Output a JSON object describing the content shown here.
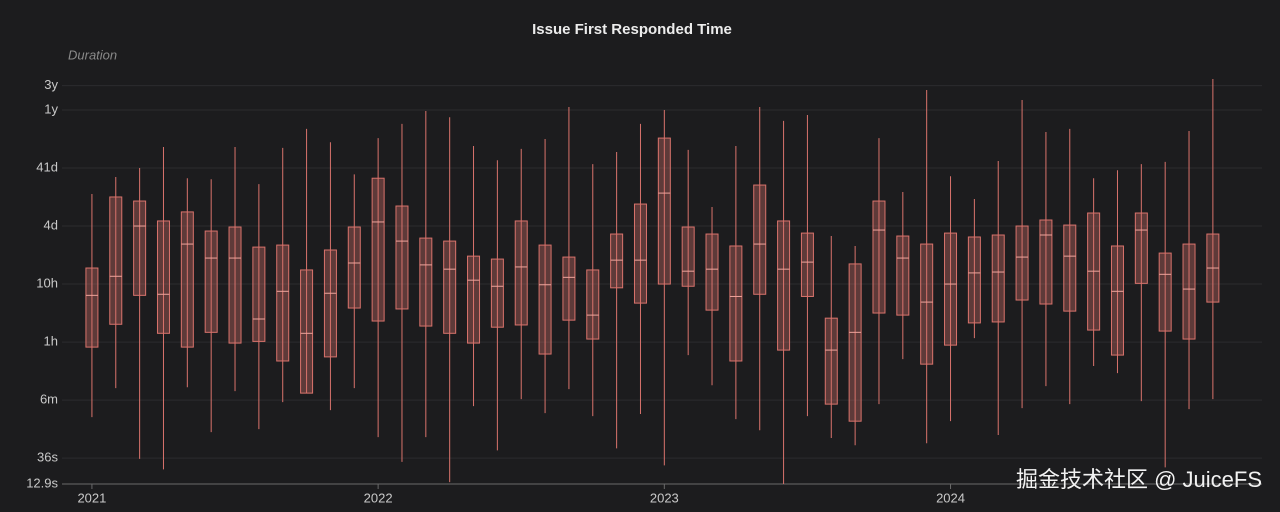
{
  "chart_data": {
    "type": "box",
    "title": "Issue First Responded Time",
    "y_label": "Duration",
    "categories": [
      "2021",
      null,
      null,
      null,
      null,
      null,
      null,
      null,
      null,
      null,
      null,
      null,
      "2022",
      null,
      null,
      null,
      null,
      null,
      null,
      null,
      null,
      null,
      null,
      null,
      "2023",
      null,
      null,
      null,
      null,
      null,
      null,
      null,
      null,
      null,
      null,
      null,
      "2024",
      null,
      null,
      null,
      null,
      null,
      null,
      null,
      null,
      null,
      null,
      null
    ],
    "min": [
      183,
      580,
      35,
      23,
      600,
      101,
      514,
      114,
      333,
      475,
      242,
      580,
      83,
      31,
      83,
      13.9,
      284,
      49,
      374,
      215,
      557,
      191,
      53,
      207,
      27,
      2150,
      650,
      169,
      109,
      12.9,
      191,
      80,
      60,
      307,
      1830,
      65,
      156,
      4220,
      90,
      262,
      627,
      307,
      1390,
      1050,
      346,
      25,
      252,
      374
    ],
    "q1": [
      2950,
      7300,
      23000,
      5100,
      2950,
      5300,
      3460,
      3700,
      1700,
      475,
      2000,
      13900,
      8300,
      13400,
      6800,
      5100,
      3460,
      6500,
      7100,
      2240,
      8600,
      4060,
      31000,
      16900,
      36000,
      33000,
      12800,
      1700,
      24000,
      2620,
      22000,
      307,
      156,
      11400,
      10500,
      1500,
      3190,
      7700,
      8000,
      19100,
      16300,
      12300,
      5800,
      2150,
      37000,
      5570,
      4060,
      17600
    ],
    "median": [
      23000,
      49000,
      360000,
      24000,
      176000,
      101000,
      101000,
      9000,
      27000,
      5100,
      25000,
      83000,
      423000,
      198000,
      77000,
      65000,
      42000,
      33000,
      71000,
      35000,
      47000,
      10500,
      93000,
      93000,
      1330000,
      60000,
      65000,
      22000,
      176000,
      65000,
      86000,
      2620,
      5300,
      307000,
      101000,
      17600,
      36000,
      56000,
      58000,
      105000,
      252000,
      109000,
      60000,
      27000,
      307000,
      53000,
      29500,
      68000
    ],
    "q3": [
      68000,
      1140000,
      970000,
      440000,
      630000,
      295000,
      346000,
      156000,
      169000,
      63000,
      139000,
      346000,
      2400000,
      796000,
      223000,
      198000,
      109000,
      97000,
      440000,
      169000,
      105000,
      63000,
      262000,
      861000,
      11800000,
      346000,
      262000,
      163000,
      1830000,
      440000,
      272000,
      9300,
      80000,
      970000,
      242000,
      176000,
      272000,
      233000,
      252000,
      360000,
      457000,
      374000,
      603000,
      163000,
      603000,
      123000,
      176000,
      262000
    ],
    "max": [
      1280000,
      2520000,
      3600000,
      8300000,
      2400000,
      2300000,
      8300000,
      1900000,
      8000000,
      17000000,
      10000000,
      2800000,
      11800000,
      20700000,
      34600000,
      27000000,
      8600000,
      4900000,
      7700000,
      11400000,
      40600000,
      4200000,
      6800000,
      20700000,
      36000000,
      7400000,
      767000,
      8600000,
      40600000,
      23300000,
      29500000,
      242000,
      163000,
      11800000,
      1390000,
      79700000,
      2600000,
      1050000,
      4750000,
      53500000,
      15000000,
      17000000,
      2400000,
      3300000,
      4200000,
      4600000,
      15600000,
      123000000
    ],
    "color": "#d9736c",
    "log_scale": true,
    "grid": true,
    "ylim": [
      12.9,
      128000000
    ],
    "yticks": [
      {
        "value": 12.9,
        "label": "12.9s"
      },
      {
        "value": 36,
        "label": "36s"
      },
      {
        "value": 360,
        "label": "6m"
      },
      {
        "value": 3600,
        "label": "1h"
      },
      {
        "value": 36000,
        "label": "10h"
      },
      {
        "value": 360000,
        "label": "4d"
      },
      {
        "value": 3600000,
        "label": "41d"
      },
      {
        "value": 36000000,
        "label": "1y"
      },
      {
        "value": 94608000,
        "label": "3y"
      }
    ]
  },
  "watermark": "掘金技术社区 @ JuiceFS"
}
